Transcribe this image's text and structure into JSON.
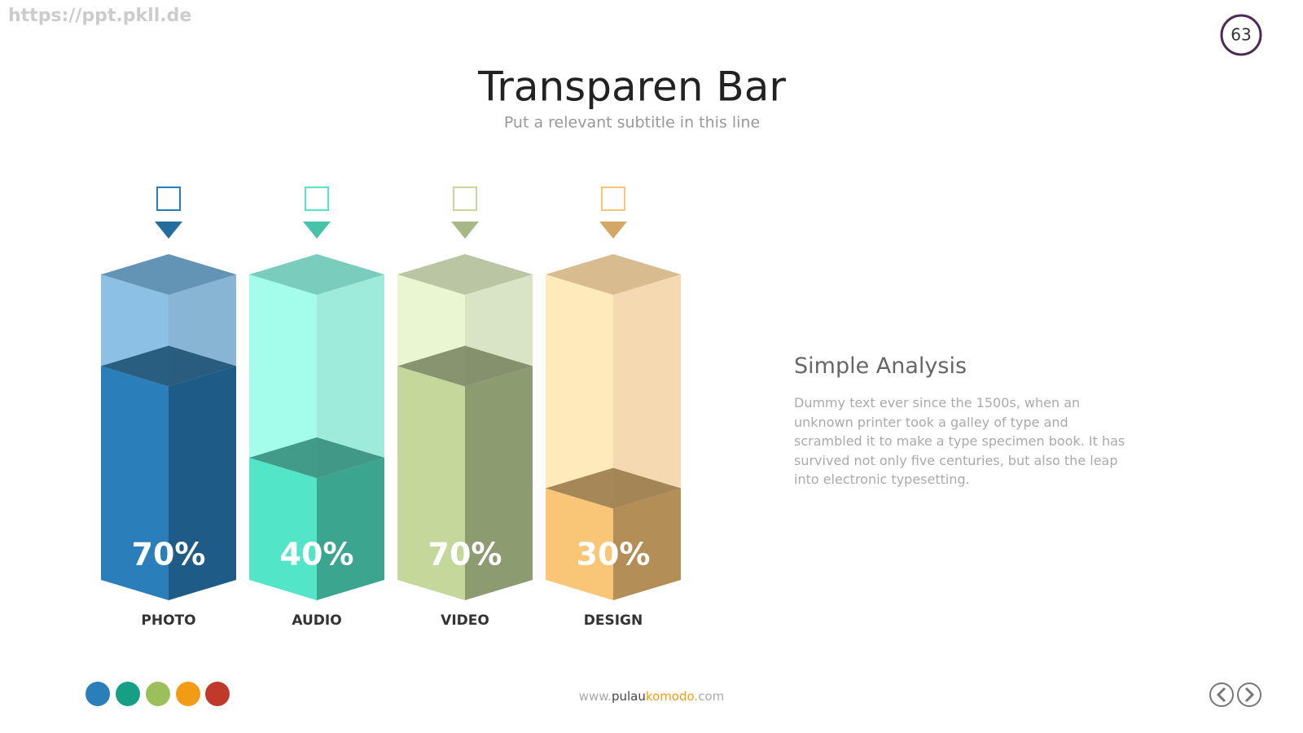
{
  "watermark": "https://ppt.pkll.de",
  "page_number": "63",
  "chart_data": {
    "type": "bar3d",
    "title": "Transparen Bar",
    "subtitle": "Put a relevant subtitle in this line",
    "categories": [
      "PHOTO",
      "AUDIO",
      "VIDEO",
      "DESIGN"
    ],
    "values": [
      70,
      40,
      70,
      30
    ],
    "value_labels": [
      "70%",
      "40%",
      "70%",
      "30%"
    ],
    "colors": [
      "#2a7fba",
      "#52e5c7",
      "#c4d89c",
      "#f9c577"
    ],
    "ylim": [
      0,
      100
    ]
  },
  "side": {
    "heading": "Simple Analysis",
    "body": "Dummy text ever since the 1500s, when an unknown printer took a galley of type and scrambled it to make a type specimen book. It has survived not only five centuries, but also the leap into electronic typesetting."
  },
  "footer": {
    "prefix": "www.",
    "part1": "pulau",
    "part2": "komodo",
    "suffix": ".com"
  }
}
